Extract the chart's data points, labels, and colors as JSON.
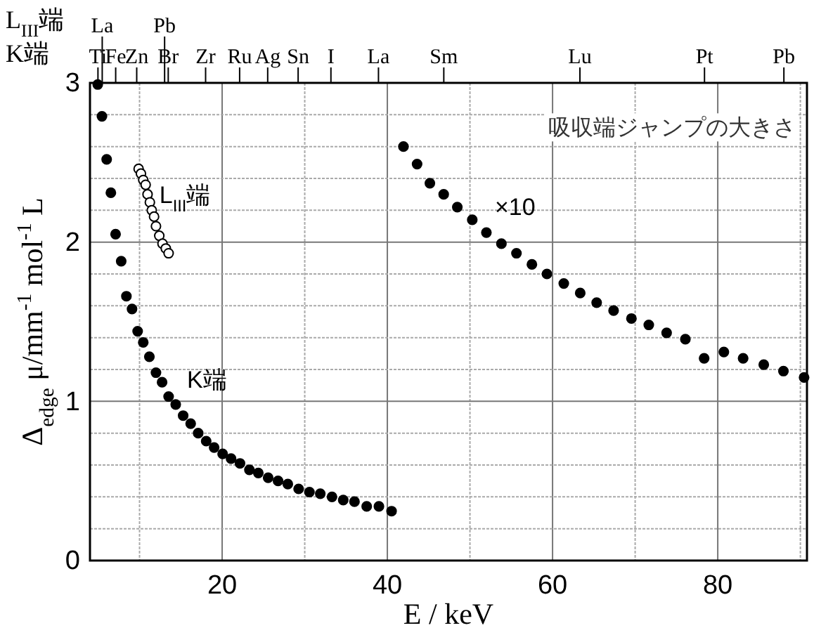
{
  "chart_data": {
    "type": "scatter",
    "xlabel": "E / keV",
    "ylabel": "Δ$_{edge}$ μ/mm$^{-1}$ mol$^{-1}$ L",
    "xlim": [
      4,
      90.8
    ],
    "ylim": [
      0,
      3
    ],
    "xticks": [
      {
        "value": 10,
        "label": null
      },
      20,
      {
        "value": 30,
        "label": null
      },
      40,
      {
        "value": 50,
        "label": null
      },
      60,
      {
        "value": 70,
        "label": null
      },
      80,
      {
        "value": 90,
        "label": null
      }
    ],
    "yticks": [
      0,
      {
        "value": 0.2,
        "label": null
      },
      {
        "value": 0.4,
        "label": null
      },
      {
        "value": 0.6,
        "label": null
      },
      {
        "value": 0.8,
        "label": null
      },
      1,
      {
        "value": 1.2,
        "label": null
      },
      {
        "value": 1.4,
        "label": null
      },
      {
        "value": 1.6,
        "label": null
      },
      {
        "value": 1.8,
        "label": null
      },
      2,
      {
        "value": 2.2,
        "label": null
      },
      {
        "value": 2.4,
        "label": null
      },
      {
        "value": 2.6,
        "label": null
      },
      {
        "value": 2.8,
        "label": null
      },
      3
    ],
    "ref_lines": [
      {
        "axis": "x",
        "value": 4.966,
        "label": "Ti"
      },
      {
        "axis": "x",
        "value": 7.112,
        "label": "Fe"
      },
      {
        "axis": "x",
        "value": 9.659,
        "label": "Zn"
      },
      {
        "axis": "x",
        "value": 13.474,
        "label": "Br"
      },
      {
        "axis": "x",
        "value": 17.998,
        "label": "Zr"
      },
      {
        "axis": "x",
        "value": 22.117,
        "label": "Ru"
      },
      {
        "axis": "x",
        "value": 25.514,
        "label": "Ag"
      },
      {
        "axis": "x",
        "value": 29.2,
        "label": "Sn"
      },
      {
        "axis": "x",
        "value": 33.169,
        "label": "I"
      },
      {
        "axis": "x",
        "value": 38.925,
        "label": "La"
      },
      {
        "axis": "x",
        "value": 46.834,
        "label": "Sm"
      },
      {
        "axis": "x",
        "value": 63.314,
        "label": "Lu"
      },
      {
        "axis": "x",
        "value": 78.395,
        "label": "Pt"
      },
      {
        "axis": "x",
        "value": 88.005,
        "label": "Pb"
      },
      {
        "axis": "x",
        "value": 5.483,
        "label": "La"
      },
      {
        "axis": "x",
        "value": 13.035,
        "label": "Pb"
      }
    ],
    "grid": true,
    "marker": "circle",
    "series": [
      {
        "color": "#000000",
        "x": [
          4.94,
          5.45,
          6.02,
          6.53,
          7.1,
          7.78,
          8.41,
          9.09,
          9.77,
          10.45,
          11.19,
          11.99,
          12.73,
          13.52,
          14.38,
          15.28,
          16.19,
          17.1,
          18.07,
          19.03,
          20.06,
          21.08,
          22.16,
          23.3,
          24.38,
          25.57,
          26.77,
          27.95,
          29.26,
          30.57,
          31.88,
          33.3,
          34.66,
          36.02,
          37.5,
          38.98,
          40.51
        ],
        "values": [
          2.99,
          2.79,
          2.52,
          2.31,
          2.05,
          1.88,
          1.66,
          1.58,
          1.44,
          1.37,
          1.28,
          1.18,
          1.12,
          1.03,
          0.98,
          0.91,
          0.86,
          0.8,
          0.75,
          0.71,
          0.67,
          0.64,
          0.61,
          0.57,
          0.55,
          0.52,
          0.5,
          0.48,
          0.45,
          0.43,
          0.42,
          0.4,
          0.38,
          0.37,
          0.34,
          0.34,
          0.31
        ]
      },
      {
        "color": "#ffffff",
        "x": [
          9.89,
          10.17,
          10.45,
          10.74,
          10.97,
          11.25,
          11.48,
          11.76,
          11.99,
          12.39,
          12.78,
          13.18,
          13.52
        ],
        "values": [
          2.46,
          2.43,
          2.39,
          2.36,
          2.3,
          2.25,
          2.2,
          2.16,
          2.1,
          2.04,
          1.99,
          1.96,
          1.93
        ]
      },
      {
        "color": "#000000",
        "x": [
          41.95,
          43.6,
          45.15,
          46.82,
          48.47,
          50.28,
          51.99,
          53.81,
          55.63,
          57.5,
          59.32,
          61.36,
          63.35,
          65.34,
          67.39,
          69.55,
          71.65,
          73.81,
          76.08,
          78.35,
          80.74,
          83.07,
          85.57,
          87.95,
          90.45
        ],
        "values": [
          2.6,
          2.49,
          2.37,
          2.3,
          2.22,
          2.14,
          2.06,
          1.99,
          1.93,
          1.86,
          1.8,
          1.74,
          1.68,
          1.62,
          1.57,
          1.52,
          1.48,
          1.43,
          1.39,
          1.27,
          1.31,
          1.27,
          1.23,
          1.19,
          1.15
        ]
      }
    ],
    "annotations": [
      "吸収端ジャンプの大きさ",
      {
        "text": "L$_{III}$端",
        "x": 12.4,
        "y": 2.28
      },
      "K端",
      "×10",
      "K端",
      "L$_{III}$端"
    ]
  }
}
